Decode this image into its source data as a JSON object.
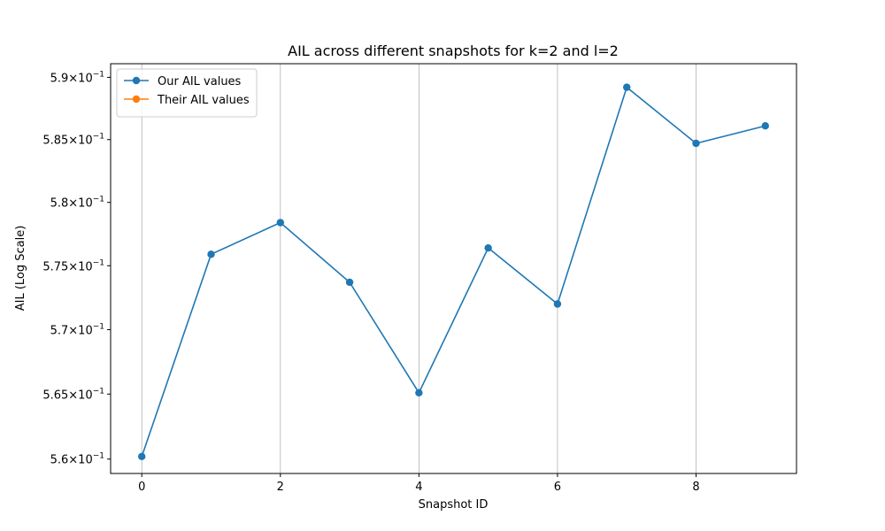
{
  "chart_data": {
    "type": "line",
    "title": "AIL across different snapshots for k=2 and l=2",
    "xlabel": "Snapshot ID",
    "ylabel": "AIL (Log Scale)",
    "yscale": "log",
    "grid": "vertical-major",
    "legend_position": "top-left",
    "xlim": [
      -0.45,
      9.45
    ],
    "ylim": [
      0.5589,
      0.5911
    ],
    "x_ticks": [
      0,
      2,
      4,
      6,
      8
    ],
    "x_tick_labels": [
      "0",
      "2",
      "4",
      "6",
      "8"
    ],
    "y_ticks": [
      0.56,
      0.565,
      0.57,
      0.575,
      0.58,
      0.585,
      0.59
    ],
    "y_tick_labels": [
      {
        "mantissa": "5.6",
        "exponent": "−1"
      },
      {
        "mantissa": "5.65",
        "exponent": "−1"
      },
      {
        "mantissa": "5.7",
        "exponent": "−1"
      },
      {
        "mantissa": "5.75",
        "exponent": "−1"
      },
      {
        "mantissa": "5.8",
        "exponent": "−1"
      },
      {
        "mantissa": "5.85",
        "exponent": "−1"
      },
      {
        "mantissa": "5.9",
        "exponent": "−1"
      }
    ],
    "series": [
      {
        "name": "Our AIL values",
        "color": "#1f77b4",
        "marker": "circle",
        "x": [
          0,
          1,
          2,
          3,
          4,
          5,
          6,
          7,
          8,
          9
        ],
        "values": [
          0.5602,
          0.5759,
          0.5784,
          0.5737,
          0.5651,
          0.5764,
          0.572,
          0.5892,
          0.5847,
          0.5861
        ]
      },
      {
        "name": "Their AIL values",
        "color": "#ff7f0e",
        "marker": "circle",
        "x": [],
        "values": []
      }
    ]
  }
}
